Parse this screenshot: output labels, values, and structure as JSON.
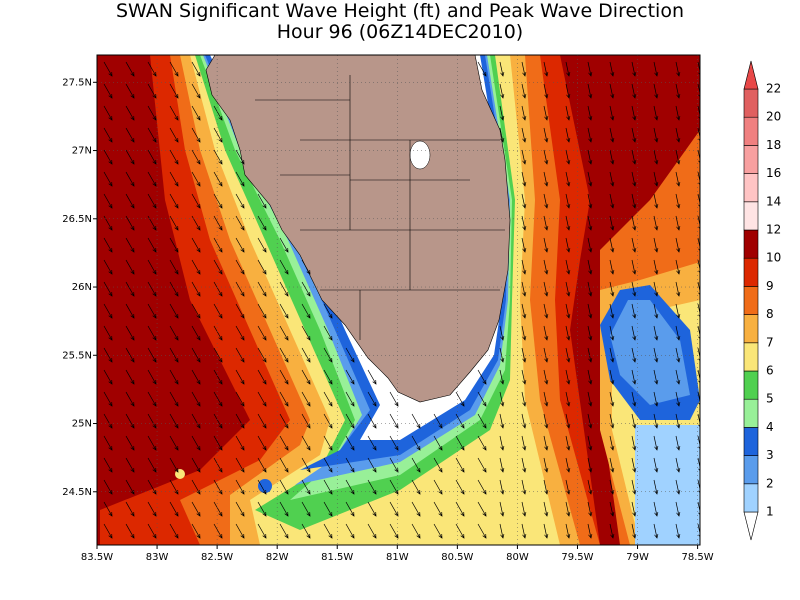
{
  "title": "SWAN Significant Wave Height (ft) and Peak Wave Direction",
  "subtitle": "Hour 96 (06Z14DEC2010)",
  "map": {
    "xlim": [
      -83.5,
      -78.48
    ],
    "ylim": [
      24.11,
      27.7
    ],
    "xticks": [
      {
        "value": -83.5,
        "label": "83.5W"
      },
      {
        "value": -83,
        "label": "83W"
      },
      {
        "value": -82.5,
        "label": "82.5W"
      },
      {
        "value": -82,
        "label": "82W"
      },
      {
        "value": -81.5,
        "label": "81.5W"
      },
      {
        "value": -81,
        "label": "81W"
      },
      {
        "value": -80.5,
        "label": "80.5W"
      },
      {
        "value": -80,
        "label": "80W"
      },
      {
        "value": -79.5,
        "label": "79.5W"
      },
      {
        "value": -79,
        "label": "79W"
      },
      {
        "value": -78.5,
        "label": "78.5W"
      }
    ],
    "yticks": [
      {
        "value": 24.5,
        "label": "24.5N"
      },
      {
        "value": 25,
        "label": "25N"
      },
      {
        "value": 25.5,
        "label": "25.5N"
      },
      {
        "value": 26,
        "label": "26N"
      },
      {
        "value": 26.5,
        "label": "26.5N"
      },
      {
        "value": 27,
        "label": "27N"
      },
      {
        "value": 27.5,
        "label": "27.5N"
      }
    ],
    "grid": true,
    "land_color": "#b8968a"
  },
  "colorbar": {
    "levels": [
      1,
      2,
      3,
      4,
      5,
      6,
      7,
      8,
      9,
      10,
      12,
      14,
      16,
      18,
      20,
      22
    ],
    "colors": [
      "#a0d2ff",
      "#5a9cec",
      "#1e64dc",
      "#98f098",
      "#50d050",
      "#fae678",
      "#f8b040",
      "#f06c18",
      "#dc2800",
      "#a00000",
      "#ffe4e4",
      "#ffc4c4",
      "#f8a0a0",
      "#f08080",
      "#e06060"
    ],
    "over_color": "#e84848",
    "under_color": "#ffffff"
  }
}
